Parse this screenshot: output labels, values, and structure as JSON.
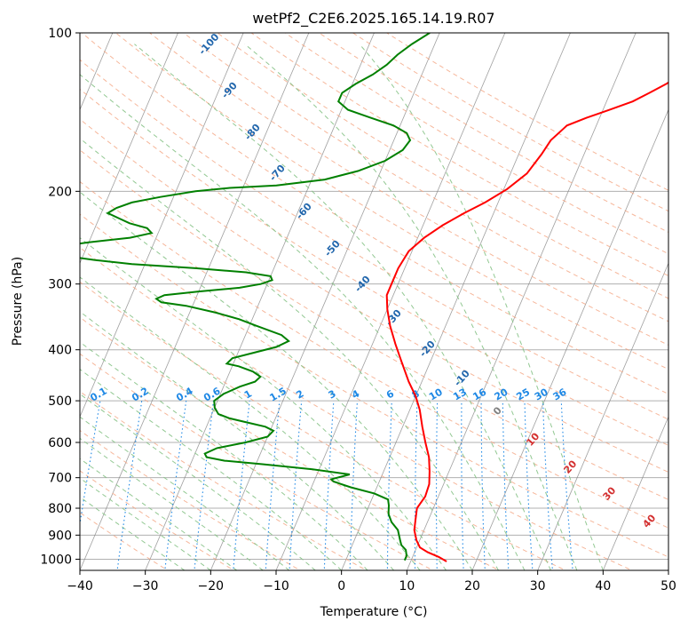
{
  "chart_data": {
    "type": "line",
    "title": "wetPf2_C2E6.2025.165.14.19.R07",
    "xlabel": "Temperature (°C)",
    "ylabel": "Pressure (hPa)",
    "xlim": [
      -40,
      50
    ],
    "ylim": [
      1050,
      100
    ],
    "y_scale": "log",
    "x_ticks": [
      -40,
      -30,
      -20,
      -10,
      0,
      10,
      20,
      30,
      40,
      50
    ],
    "y_ticks": [
      1000,
      900,
      800,
      700,
      600,
      500,
      400,
      300,
      200,
      100
    ],
    "skew": 35,
    "grid": true,
    "colors": {
      "temperature": "#ff0000",
      "dewpoint": "#008000",
      "isotherm": "#808080",
      "dry_adiabat": "#f4a582",
      "moist_adiabat": "#86c286",
      "mixing_ratio": "#1e88e5",
      "isotherm_labels": "#2166ac",
      "wet_bulb_labels": "#d32f2f"
    },
    "series": [
      {
        "role": "temperature",
        "points": [
          [
            15.5,
            1010
          ],
          [
            14.0,
            990
          ],
          [
            12.0,
            970
          ],
          [
            10.5,
            950
          ],
          [
            9.5,
            920
          ],
          [
            8.5,
            880
          ],
          [
            8.0,
            840
          ],
          [
            7.5,
            800
          ],
          [
            8.0,
            760
          ],
          [
            7.8,
            720
          ],
          [
            7.0,
            680
          ],
          [
            6.0,
            640
          ],
          [
            4.5,
            600
          ],
          [
            3.0,
            560
          ],
          [
            1.5,
            520
          ],
          [
            0.0,
            490
          ],
          [
            -2.0,
            460
          ],
          [
            -4.5,
            420
          ],
          [
            -6.5,
            390
          ],
          [
            -8.5,
            360
          ],
          [
            -10.0,
            335
          ],
          [
            -11.0,
            315
          ],
          [
            -11.0,
            300
          ],
          [
            -11.0,
            280
          ],
          [
            -10.5,
            260
          ],
          [
            -9.0,
            245
          ],
          [
            -7.0,
            232
          ],
          [
            -4.5,
            220
          ],
          [
            -2.0,
            210
          ],
          [
            0.5,
            198
          ],
          [
            2.5,
            185
          ],
          [
            3.5,
            170
          ],
          [
            4.0,
            160
          ],
          [
            5.5,
            150
          ],
          [
            8.0,
            145
          ],
          [
            11.0,
            140
          ],
          [
            14.0,
            135
          ],
          [
            16.0,
            130
          ],
          [
            18.0,
            125
          ],
          [
            19.5,
            120
          ],
          [
            21.5,
            115
          ],
          [
            23.0,
            110
          ],
          [
            25.0,
            106
          ],
          [
            26.5,
            103
          ],
          [
            27.5,
            100
          ]
        ]
      },
      {
        "role": "dewpoint",
        "points": [
          [
            9.0,
            1005
          ],
          [
            9.0,
            985
          ],
          [
            8.5,
            960
          ],
          [
            7.5,
            940
          ],
          [
            7.0,
            920
          ],
          [
            6.0,
            880
          ],
          [
            4.5,
            850
          ],
          [
            3.5,
            820
          ],
          [
            3.0,
            790
          ],
          [
            2.5,
            770
          ],
          [
            0.0,
            750
          ],
          [
            -4.0,
            730
          ],
          [
            -7.0,
            712
          ],
          [
            -7.5,
            705
          ],
          [
            -5.0,
            690
          ],
          [
            -11.0,
            675
          ],
          [
            -19.0,
            660
          ],
          [
            -25.0,
            650
          ],
          [
            -28.0,
            640
          ],
          [
            -28.5,
            630
          ],
          [
            -27.0,
            615
          ],
          [
            -23.0,
            600
          ],
          [
            -20.0,
            585
          ],
          [
            -19.5,
            570
          ],
          [
            -21.0,
            560
          ],
          [
            -24.0,
            550
          ],
          [
            -27.0,
            540
          ],
          [
            -29.0,
            530
          ],
          [
            -30.0,
            515
          ],
          [
            -30.5,
            500
          ],
          [
            -29.5,
            485
          ],
          [
            -27.5,
            470
          ],
          [
            -25.5,
            460
          ],
          [
            -25.0,
            450
          ],
          [
            -26.5,
            440
          ],
          [
            -29.0,
            430
          ],
          [
            -31.0,
            425
          ],
          [
            -30.5,
            415
          ],
          [
            -27.5,
            405
          ],
          [
            -24.5,
            395
          ],
          [
            -23.0,
            385
          ],
          [
            -24.5,
            375
          ],
          [
            -29.0,
            360
          ],
          [
            -32.0,
            350
          ],
          [
            -36.0,
            340
          ],
          [
            -41.0,
            330
          ],
          [
            -45.0,
            325
          ],
          [
            -46.0,
            320
          ],
          [
            -45.0,
            315
          ],
          [
            -40.0,
            310
          ],
          [
            -34.0,
            305
          ],
          [
            -31.0,
            300
          ],
          [
            -29.5,
            295
          ],
          [
            -30.0,
            290
          ],
          [
            -34.0,
            285
          ],
          [
            -42.0,
            280
          ],
          [
            -52.0,
            275
          ],
          [
            -58.0,
            270
          ],
          [
            -63.0,
            265
          ],
          [
            -66.0,
            260
          ],
          [
            -65.0,
            255
          ],
          [
            -60.0,
            250
          ],
          [
            -54.0,
            245
          ],
          [
            -51.0,
            240
          ],
          [
            -52.0,
            235
          ],
          [
            -55.0,
            230
          ],
          [
            -57.0,
            225
          ],
          [
            -59.0,
            220
          ],
          [
            -58.0,
            215
          ],
          [
            -56.0,
            210
          ],
          [
            -52.0,
            205
          ],
          [
            -47.0,
            200
          ],
          [
            -42.0,
            197
          ],
          [
            -35.0,
            195
          ],
          [
            -28.0,
            190
          ],
          [
            -23.5,
            183
          ],
          [
            -20.0,
            175
          ],
          [
            -18.0,
            167
          ],
          [
            -17.5,
            160
          ],
          [
            -18.5,
            155
          ],
          [
            -21.0,
            150
          ],
          [
            -25.0,
            145
          ],
          [
            -29.0,
            140
          ],
          [
            -31.0,
            135
          ],
          [
            -31.0,
            130
          ],
          [
            -29.5,
            125
          ],
          [
            -27.5,
            120
          ],
          [
            -26.0,
            115
          ],
          [
            -25.0,
            110
          ],
          [
            -23.5,
            105
          ],
          [
            -21.5,
            100
          ]
        ]
      }
    ],
    "isotherm_labels": [
      "-100",
      "-90",
      "-80",
      "-70",
      "-60",
      "-50",
      "-40",
      "-30",
      "-20",
      "-10",
      "0",
      "10",
      "20",
      "30",
      "40"
    ],
    "mixing_ratio_labels": [
      "0.1",
      "0.2",
      "0.4",
      "0.6",
      "1",
      "1.5",
      "2",
      "3",
      "4",
      "6",
      "8",
      "10",
      "13",
      "16",
      "20",
      "25",
      "30",
      "36"
    ],
    "wet_bulb_labels": [
      "0",
      "10",
      "20",
      "30",
      "40"
    ]
  }
}
